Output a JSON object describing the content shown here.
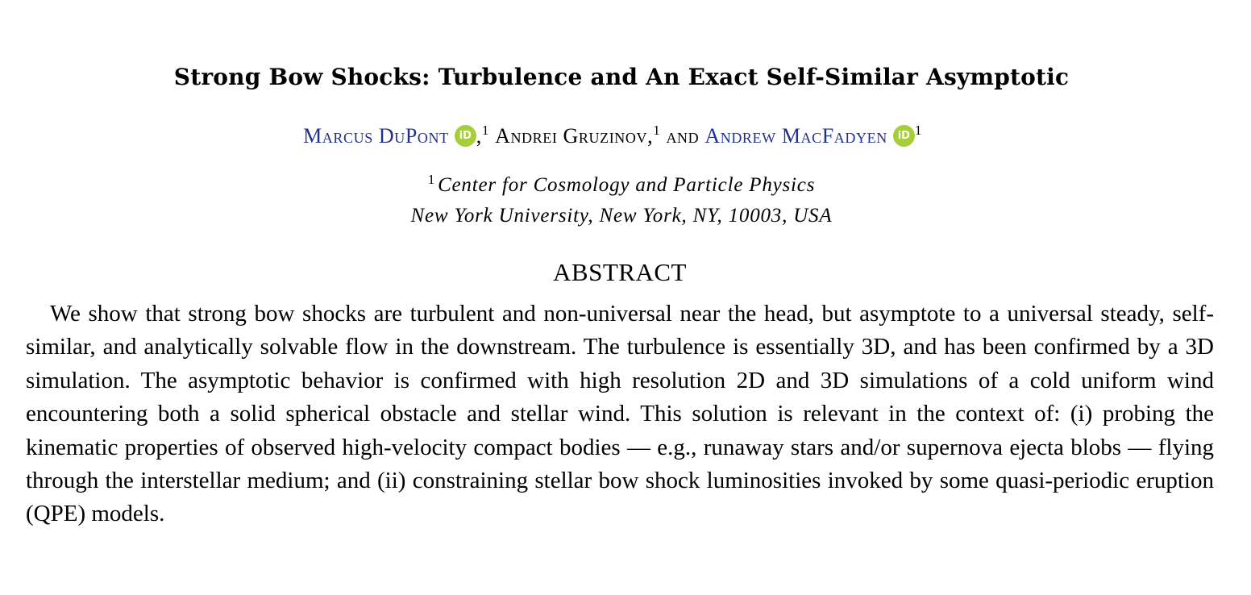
{
  "paper": {
    "title": "Strong Bow Shocks: Turbulence and An Exact Self-Similar Asymptotic",
    "authors": [
      {
        "name": "Marcus DuPont",
        "affiliation_mark": "1",
        "orcid_icon": "iD",
        "linked": true
      },
      {
        "name": "Andrei Gruzinov",
        "affiliation_mark": "1",
        "orcid_icon": "",
        "linked": false
      },
      {
        "name": "Andrew MacFadyen",
        "affiliation_mark": "1",
        "orcid_icon": "iD",
        "linked": true
      }
    ],
    "author_separator_comma": ",",
    "author_joiner": "and",
    "affiliation": {
      "mark": "1",
      "line1": "Center for Cosmology and Particle Physics",
      "line2": "New York University, New York, NY, 10003, USA"
    },
    "abstract_heading": "ABSTRACT",
    "abstract_text": "We show that strong bow shocks are turbulent and non-universal near the head, but asymptote to a universal steady, self-similar, and analytically solvable flow in the downstream. The turbulence is essentially 3D, and has been confirmed by a 3D simulation. The asymptotic behavior is confirmed with high resolution 2D and 3D simulations of a cold uniform wind encountering both a solid spherical obstacle and stellar wind. This solution is relevant in the context of: (i) probing the kinematic properties of observed high-velocity compact bodies — e.g., runaway stars and/or supernova ejecta blobs — flying through the interstellar medium; and (ii) constraining stellar bow shock luminosities invoked by some quasi-periodic eruption (QPE) models."
  },
  "colors": {
    "author_link": "#1f2f8c",
    "orcid_badge": "#a6ce39",
    "text": "#000000",
    "background": "#ffffff"
  },
  "icons": {
    "orcid": "orcid-icon"
  }
}
